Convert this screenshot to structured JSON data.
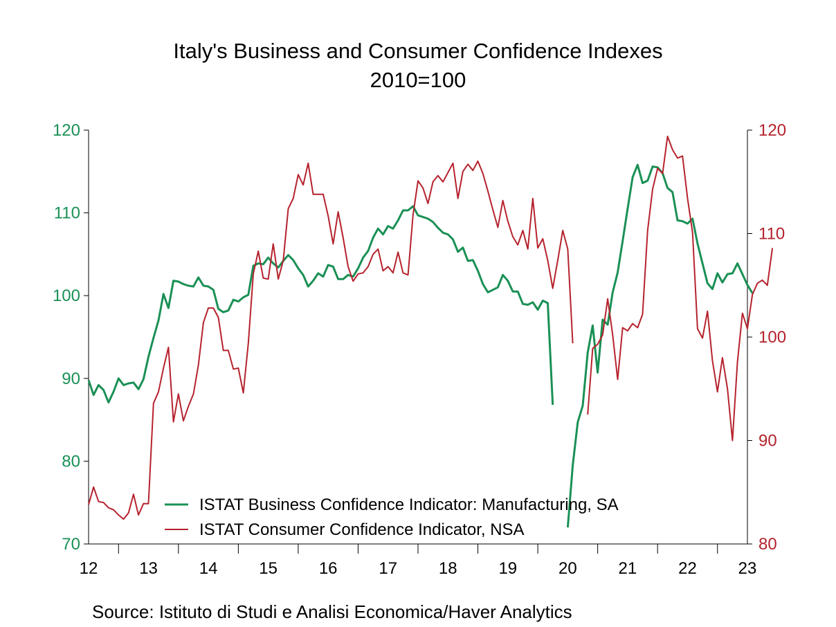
{
  "chart_data": {
    "type": "line",
    "title": "Italy's Business and Consumer Confidence Indexes",
    "subtitle": "2010=100",
    "source": "Source:  Istituto di Studi e Analisi Economica/Haver Analytics",
    "x_tick_labels": [
      "12",
      "13",
      "14",
      "15",
      "16",
      "17",
      "18",
      "19",
      "20",
      "21",
      "22",
      "23"
    ],
    "x_range": [
      2012.0,
      2023.0
    ],
    "left_axis": {
      "range": [
        70,
        120
      ],
      "ticks": [
        "70",
        "80",
        "90",
        "100",
        "110",
        "120"
      ],
      "color": "#1a9055"
    },
    "right_axis": {
      "range": [
        80,
        120
      ],
      "ticks": [
        "80",
        "90",
        "100",
        "110",
        "120"
      ],
      "color": "#b5222d"
    },
    "legend_position": "bottom-left inside plot",
    "grid": false,
    "series": [
      {
        "name": "ISTAT Business Confidence Indicator: Manufacturing, SA",
        "axis": "left",
        "color": "#1a9055",
        "start": "2012-01",
        "values": [
          89.8,
          88.0,
          89.2,
          88.6,
          87.1,
          88.4,
          90.0,
          89.2,
          89.4,
          89.5,
          88.7,
          89.9,
          92.6,
          94.9,
          97.0,
          100.2,
          98.5,
          101.8,
          101.7,
          101.4,
          101.2,
          101.1,
          102.2,
          101.2,
          101.1,
          100.7,
          98.4,
          98.0,
          98.2,
          99.5,
          99.3,
          99.8,
          100.1,
          103.6,
          103.9,
          103.8,
          104.6,
          103.9,
          103.4,
          104.2,
          104.9,
          104.3,
          103.3,
          102.5,
          101.1,
          101.8,
          102.7,
          102.3,
          103.7,
          103.5,
          102.0,
          102.0,
          102.5,
          102.3,
          103.3,
          104.6,
          105.4,
          107.0,
          108.1,
          107.4,
          108.4,
          108.1,
          109.1,
          110.3,
          110.3,
          110.8,
          109.7,
          109.5,
          109.3,
          108.9,
          108.2,
          107.6,
          107.4,
          106.8,
          105.3,
          105.8,
          104.2,
          104.3,
          103.0,
          101.4,
          100.4,
          100.7,
          101.0,
          102.5,
          101.8,
          100.5,
          100.5,
          99.0,
          98.9,
          99.2,
          98.3,
          99.4,
          99.1,
          86.8,
          null,
          null,
          72.0,
          79.5,
          84.7,
          86.7,
          93.1,
          96.4,
          90.7,
          97.1,
          96.5,
          100.4,
          102.8,
          106.6,
          110.5,
          114.3,
          115.8,
          113.6,
          113.9,
          115.6,
          115.5,
          114.8,
          113.0,
          112.5,
          109.1,
          109.0,
          108.7,
          109.3,
          106.3,
          103.9,
          101.5,
          100.8,
          102.7,
          101.6,
          102.6,
          102.7,
          103.9,
          102.6,
          101.3,
          100.3
        ]
      },
      {
        "name": "ISTAT Consumer Confidence Indicator, NSA",
        "axis": "right",
        "color": "#b5222d",
        "start": "2012-01",
        "values": [
          83.8,
          85.5,
          84.1,
          84.0,
          83.5,
          83.3,
          82.8,
          82.4,
          83.0,
          84.8,
          82.8,
          83.9,
          83.9,
          93.6,
          94.7,
          97.0,
          99.0,
          91.8,
          94.5,
          91.9,
          93.3,
          94.5,
          97.3,
          101.4,
          102.8,
          102.8,
          101.9,
          98.7,
          98.7,
          96.9,
          97.0,
          94.6,
          99.4,
          106.1,
          108.3,
          105.7,
          105.6,
          109.0,
          105.6,
          107.4,
          112.4,
          113.4,
          115.7,
          114.7,
          116.8,
          113.8,
          113.8,
          113.8,
          111.7,
          109.0,
          112.1,
          109.6,
          106.8,
          105.4,
          106.1,
          106.2,
          106.8,
          108.0,
          108.5,
          106.4,
          106.8,
          106.2,
          108.2,
          106.2,
          106.0,
          111.8,
          115.1,
          114.4,
          112.9,
          115.0,
          115.6,
          115.0,
          115.9,
          116.8,
          113.4,
          116.0,
          116.7,
          116.1,
          117.0,
          115.8,
          114.1,
          112.3,
          110.6,
          113.2,
          111.2,
          109.7,
          108.9,
          110.3,
          108.5,
          113.4,
          108.6,
          109.5,
          107.4,
          104.7,
          107.4,
          110.3,
          108.5,
          99.4,
          null,
          null,
          92.5,
          98.9,
          99.3,
          100.2,
          103.7,
          100.2,
          95.9,
          100.9,
          100.6,
          101.3,
          100.9,
          102.2,
          110.3,
          114.3,
          116.3,
          115.8,
          119.4,
          118.1,
          117.3,
          117.5,
          113.4,
          110.1,
          100.8,
          99.9,
          102.5,
          97.7,
          94.7,
          98.0,
          95.0,
          90.0,
          97.6,
          102.3,
          100.8,
          104.1,
          105.2,
          105.5,
          105.0,
          108.6
        ]
      }
    ]
  }
}
